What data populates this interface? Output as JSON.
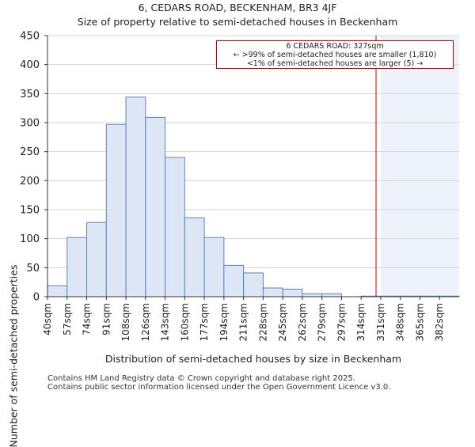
{
  "chart_data": {
    "type": "bar",
    "title": "6, CEDARS ROAD, BECKENHAM, BR3 4JF",
    "subtitle": "Size of property relative to semi-detached houses in Beckenham",
    "xlabel": "Distribution of semi-detached houses by size in Beckenham",
    "ylabel": "Number of semi-detached properties",
    "categories": [
      "40sqm",
      "57sqm",
      "74sqm",
      "91sqm",
      "108sqm",
      "126sqm",
      "143sqm",
      "160sqm",
      "177sqm",
      "194sqm",
      "211sqm",
      "228sqm",
      "245sqm",
      "262sqm",
      "279sqm",
      "297sqm",
      "314sqm",
      "331sqm",
      "348sqm",
      "365sqm",
      "382sqm"
    ],
    "values": [
      19,
      102,
      128,
      297,
      344,
      309,
      240,
      136,
      102,
      54,
      41,
      15,
      13,
      5,
      5,
      0,
      1,
      1,
      1,
      1,
      1
    ],
    "ylim": [
      0,
      450
    ],
    "yticks": [
      0,
      50,
      100,
      150,
      200,
      250,
      300,
      350,
      400,
      450
    ],
    "grid": true,
    "marker": {
      "value": 327,
      "unit": "sqm",
      "color": "#c00000",
      "bin_fraction": 0.76
    },
    "highlight_from_bin": 17,
    "annotation": {
      "line1": "6 CEDARS ROAD: 327sqm",
      "line2": "← >99% of semi-detached houses are smaller (1,810)",
      "line3": "<1% of semi-detached houses are larger (5) →"
    },
    "colors": {
      "bar_fill": "#dce6f4",
      "bar_edge": "#5a85c4",
      "grid": "#d6d6d6",
      "highlight": "#eef3fb"
    }
  },
  "footer": {
    "line1": "Contains HM Land Registry data © Crown copyright and database right 2025.",
    "line2": "Contains public sector information licensed under the Open Government Licence v3.0."
  }
}
